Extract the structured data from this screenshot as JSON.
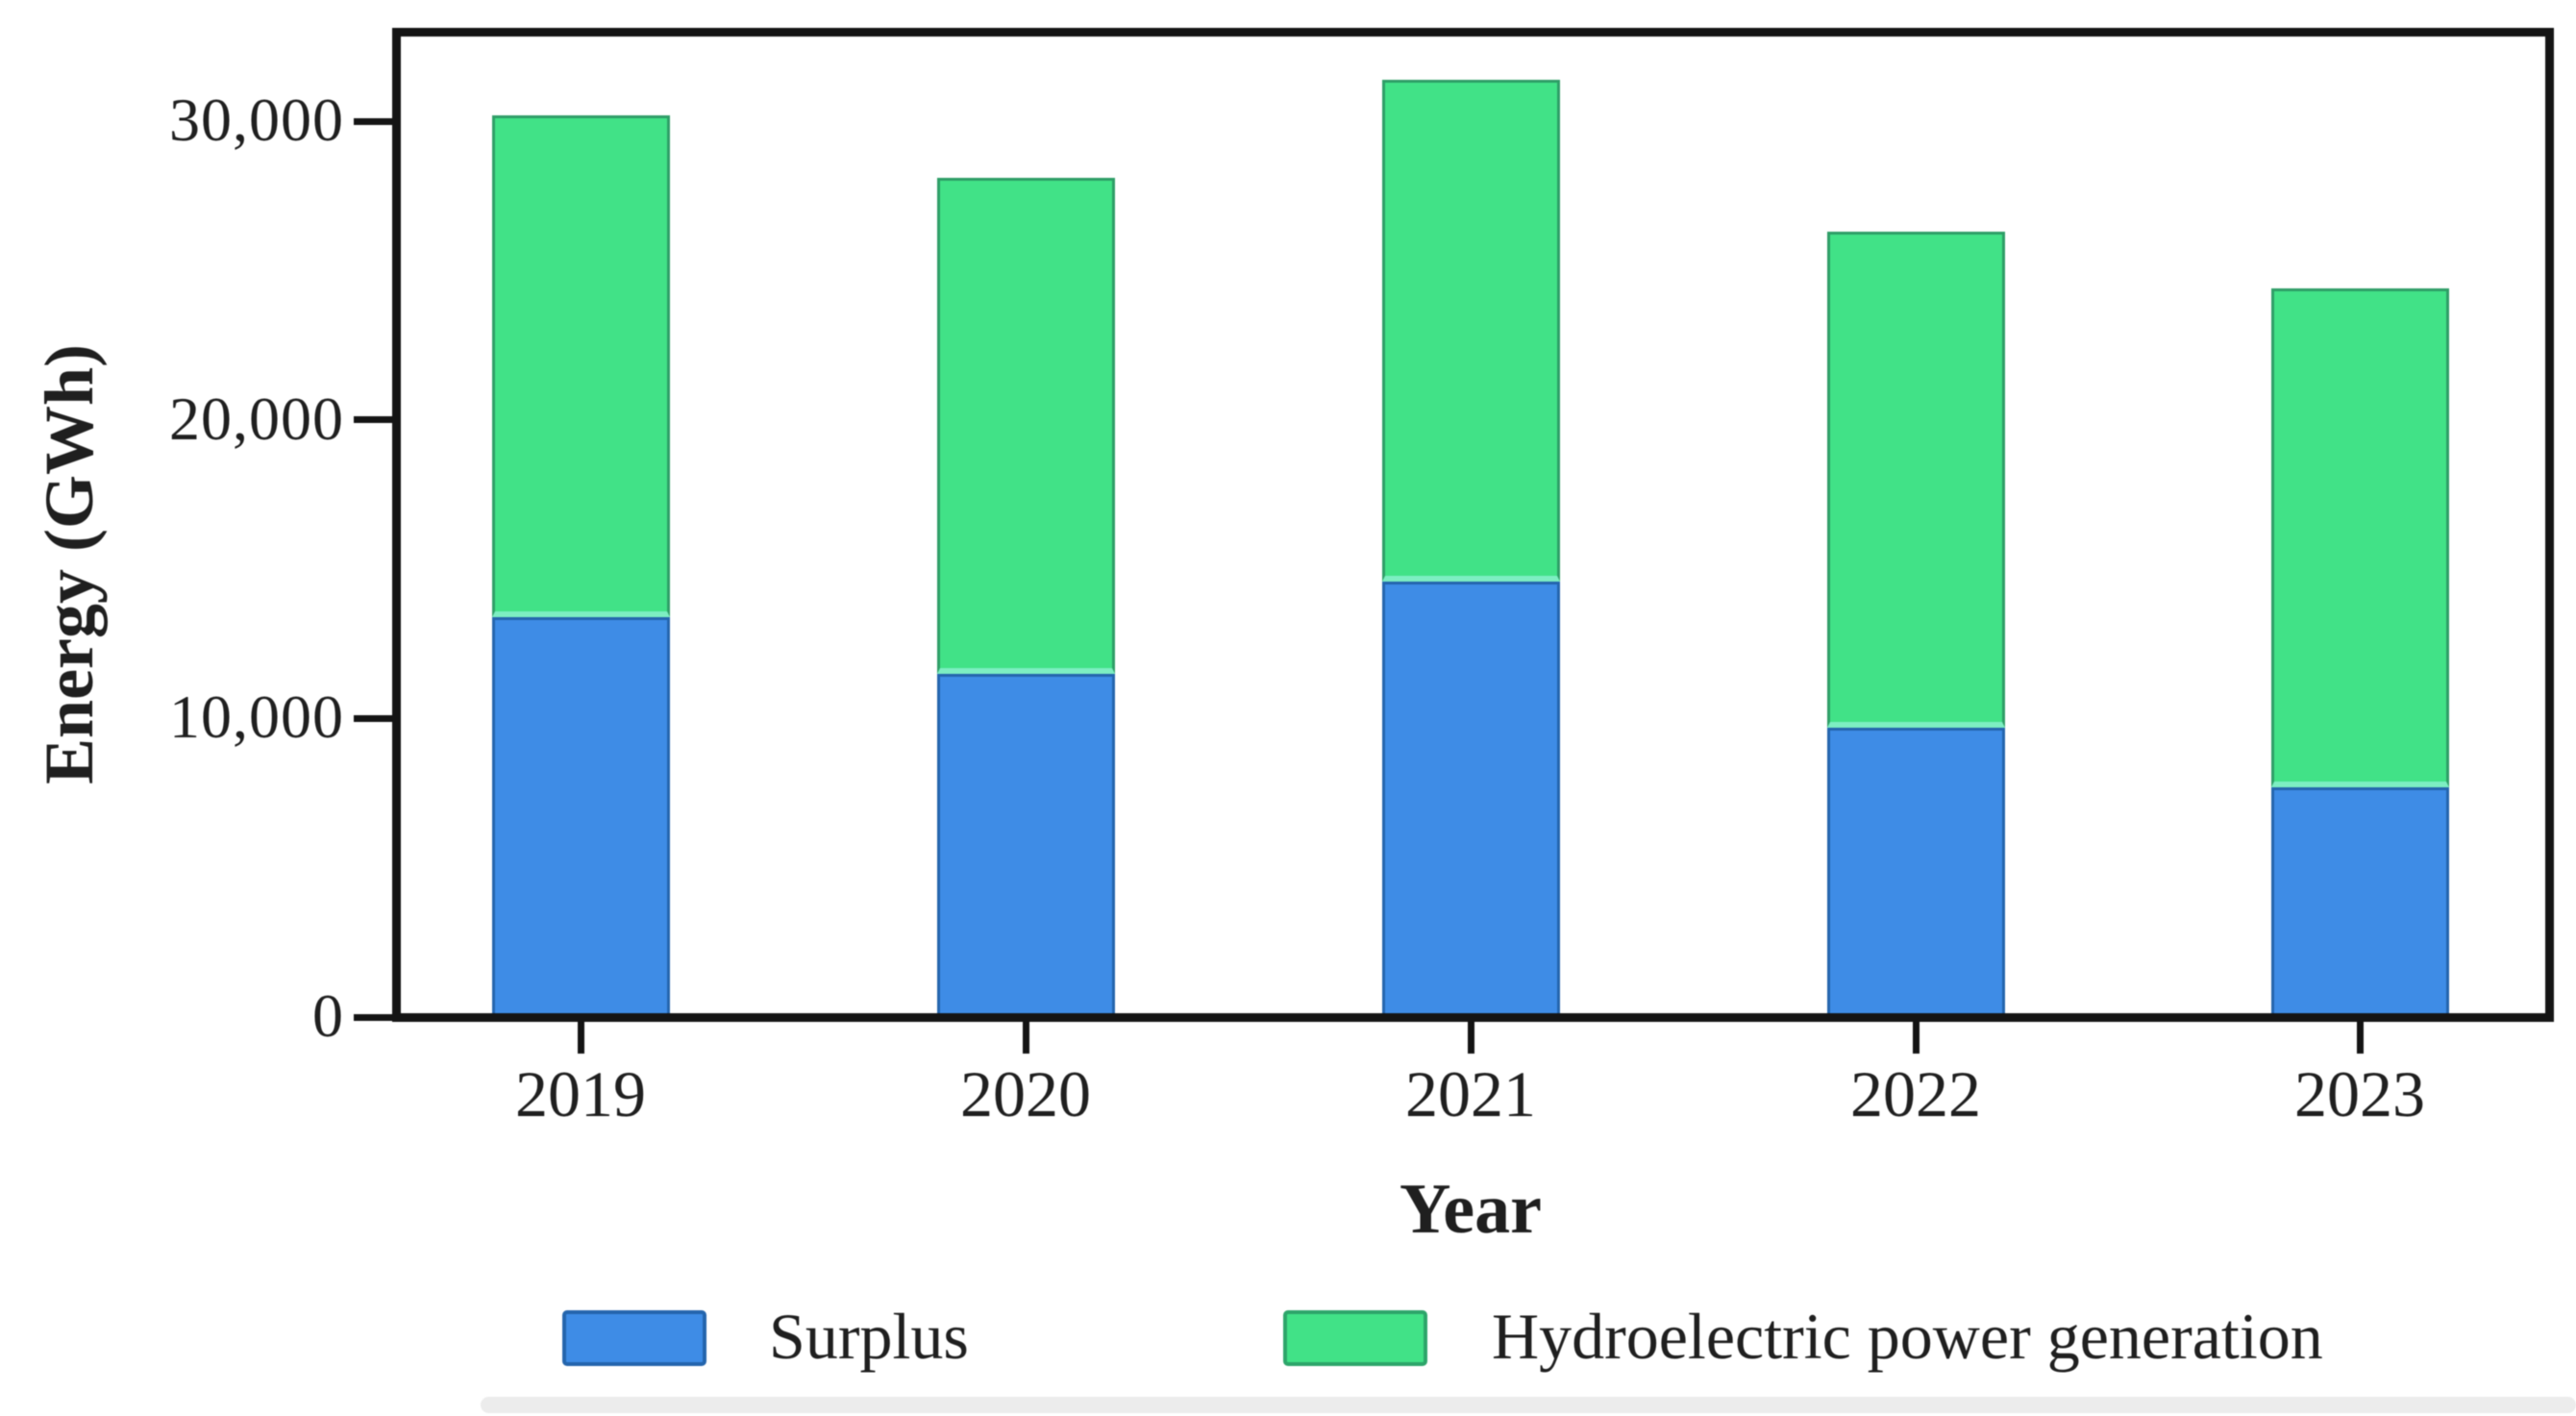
{
  "figure": {
    "background": "#ffffff",
    "text_color": "#1f1f1f",
    "axis_color": "#141414"
  },
  "y_axis": {
    "title": "Energy (GWh)",
    "tick_values": [
      0,
      10000,
      20000,
      30000
    ],
    "tick_labels": [
      "0",
      "10,000",
      "20,000",
      "30,000"
    ]
  },
  "x_axis": {
    "title": "Year",
    "tick_labels": [
      "2019",
      "2020",
      "2021",
      "2022",
      "2023"
    ]
  },
  "legend": [
    {
      "label": "Surplus",
      "color": "#3e8ce6",
      "swatch": "blue-swatch"
    },
    {
      "label": "Hydroelectric power generation",
      "color": "#41e287",
      "swatch": "green-swatch"
    }
  ],
  "chart_data": {
    "type": "bar",
    "stacked": true,
    "title": "",
    "xlabel": "Year",
    "ylabel": "Energy (GWh)",
    "categories": [
      "2019",
      "2020",
      "2021",
      "2022",
      "2023"
    ],
    "series": [
      {
        "name": "Surplus",
        "color": "#3e8ce6",
        "values": [
          13400,
          11500,
          14600,
          9700,
          7700
        ]
      },
      {
        "name": "Hydroelectric power generation",
        "color": "#41e287",
        "values": [
          16800,
          16600,
          16800,
          16600,
          16700
        ]
      }
    ],
    "totals": [
      30200,
      28100,
      31400,
      26300,
      24400
    ],
    "ylim": [
      0,
      33000
    ],
    "grid": false,
    "legend_position": "bottom"
  }
}
